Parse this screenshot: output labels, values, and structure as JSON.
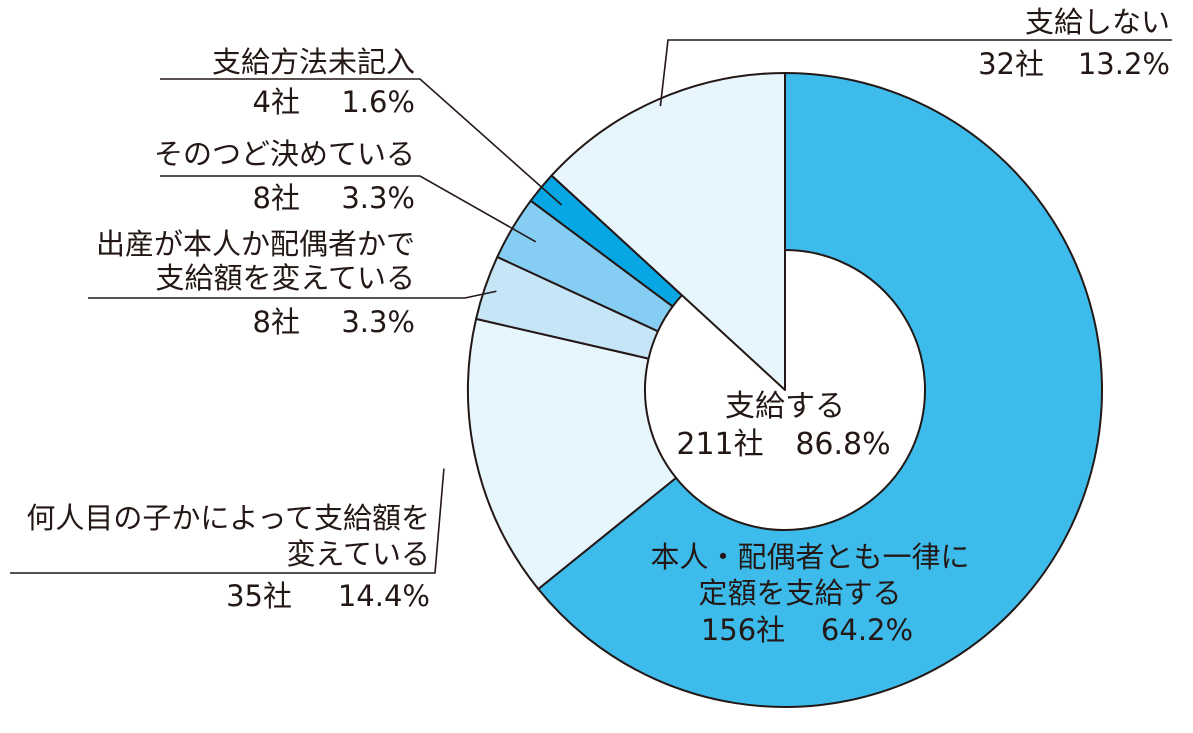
{
  "chart_data": {
    "type": "pie",
    "variant": "donut",
    "center_label": {
      "name": "支給する",
      "count": "211社",
      "percent": "86.8%"
    },
    "slices": [
      {
        "name": "本人・配偶者とも一律に定額を支給する",
        "name_lines": [
          "本人・配偶者とも一律に",
          "定額を支給する"
        ],
        "count": 156,
        "count_label": "156社",
        "percent": 64.2,
        "percent_label": "64.2%",
        "color": "#3dbcec"
      },
      {
        "name": "何人目の子かによって支給額を変えている",
        "name_lines": [
          "何人目の子かによって支給額を",
          "変えている"
        ],
        "count": 35,
        "count_label": "35社",
        "percent": 14.4,
        "percent_label": "14.4%",
        "color": "#e7f5fd"
      },
      {
        "name": "出産が本人か配偶者かで支給額を変えている",
        "name_lines": [
          "出産が本人か配偶者かで",
          "支給額を変えている"
        ],
        "count": 8,
        "count_label": "8社",
        "percent": 3.3,
        "percent_label": "3.3%",
        "color": "#c6e6f8"
      },
      {
        "name": "そのつど決めている",
        "name_lines": [
          "そのつど決めている"
        ],
        "count": 8,
        "count_label": "8社",
        "percent": 3.3,
        "percent_label": "3.3%",
        "color": "#85cdf2"
      },
      {
        "name": "支給方法未記入",
        "name_lines": [
          "支給方法未記入"
        ],
        "count": 4,
        "count_label": "4社",
        "percent": 1.6,
        "percent_label": "1.6%",
        "color": "#07a6e4"
      },
      {
        "name": "支給しない",
        "name_lines": [
          "支給しない"
        ],
        "count": 32,
        "count_label": "32社",
        "percent": 13.2,
        "percent_label": "13.2%",
        "color": "#e7f5fd"
      }
    ]
  }
}
